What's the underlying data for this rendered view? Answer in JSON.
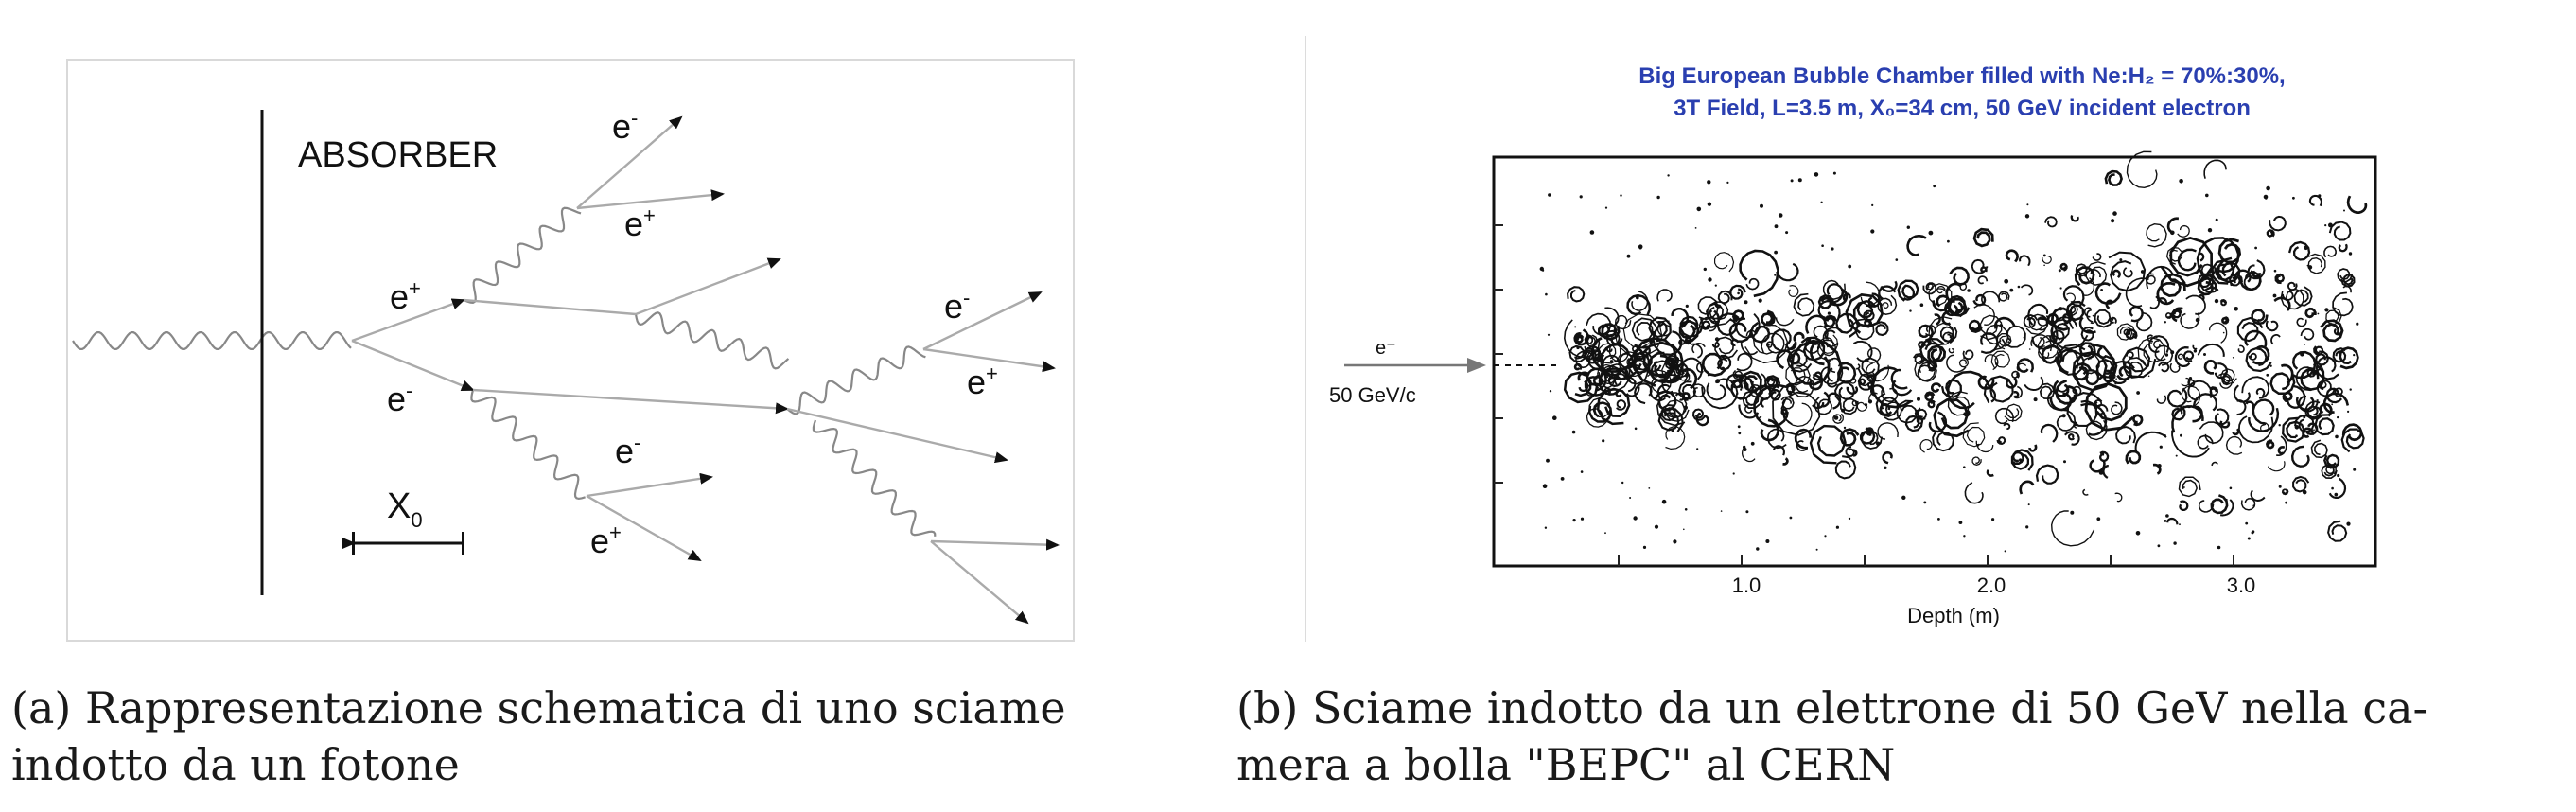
{
  "panel_a": {
    "absorber_label": "ABSORBER",
    "particles": {
      "e1_plus": "e+",
      "e1_minus": "e-",
      "top_minus": "e-",
      "top_plus": "e+",
      "right_minus": "e-",
      "right_plus": "e+",
      "lower_minus": "e-",
      "lower_plus": "e+"
    },
    "x0_label": "X",
    "x0_sub": "0"
  },
  "panel_b": {
    "title_line1": "Big European Bubble Chamber filled with Ne:H₂ = 70%:30%,",
    "title_line2": "3T Field, L=3.5 m, X₀=34 cm, 50 GeV incident electron",
    "beam_label": "e⁻",
    "beam_energy": "50 GeV/c",
    "axis_ticks": [
      "1.0",
      "2.0",
      "3.0"
    ],
    "axis_label": "Depth (m)"
  },
  "captions": {
    "a": "(a) Rappresentazione schematica di uno sciame\nindotto da un fotone",
    "b": "(b) Sciame indotto da un elettrone di 50 GeV nella ca-\nmera a bolla \"BEPC\" al CERN"
  }
}
